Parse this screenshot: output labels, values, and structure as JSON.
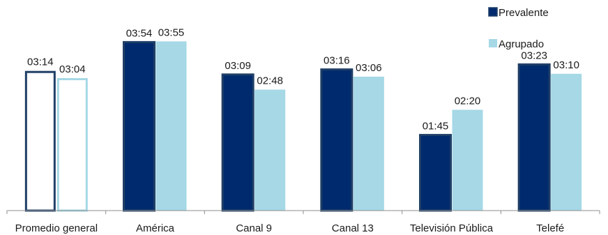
{
  "chart_data": {
    "type": "bar",
    "categories": [
      "Promedio general",
      "América",
      "Canal 9",
      "Canal 13",
      "Televisión Pública",
      "Telefé"
    ],
    "series": [
      {
        "name": "Prevalente",
        "color": "#002A6E",
        "values": [
          3.2333,
          3.9,
          3.15,
          3.2667,
          1.75,
          3.3833
        ],
        "labels": [
          "03:14",
          "03:54",
          "03:09",
          "03:16",
          "01:45",
          "03:23"
        ]
      },
      {
        "name": "Agrupado",
        "color": "#A6D8E6",
        "values": [
          3.0667,
          3.9167,
          2.8,
          3.1,
          2.3333,
          3.1667
        ],
        "labels": [
          "03:04",
          "03:55",
          "02:48",
          "03:06",
          "02:20",
          "03:10"
        ]
      }
    ],
    "highlight_outline_category": "Promedio general",
    "outline_colors": {
      "Prevalente": "#1F3F66",
      "Agrupado": "#A6D8E6"
    },
    "axis_color": "#8C8C8C",
    "ylim": [
      0,
      4.1
    ],
    "legend_position": "top-right",
    "grid": false
  }
}
